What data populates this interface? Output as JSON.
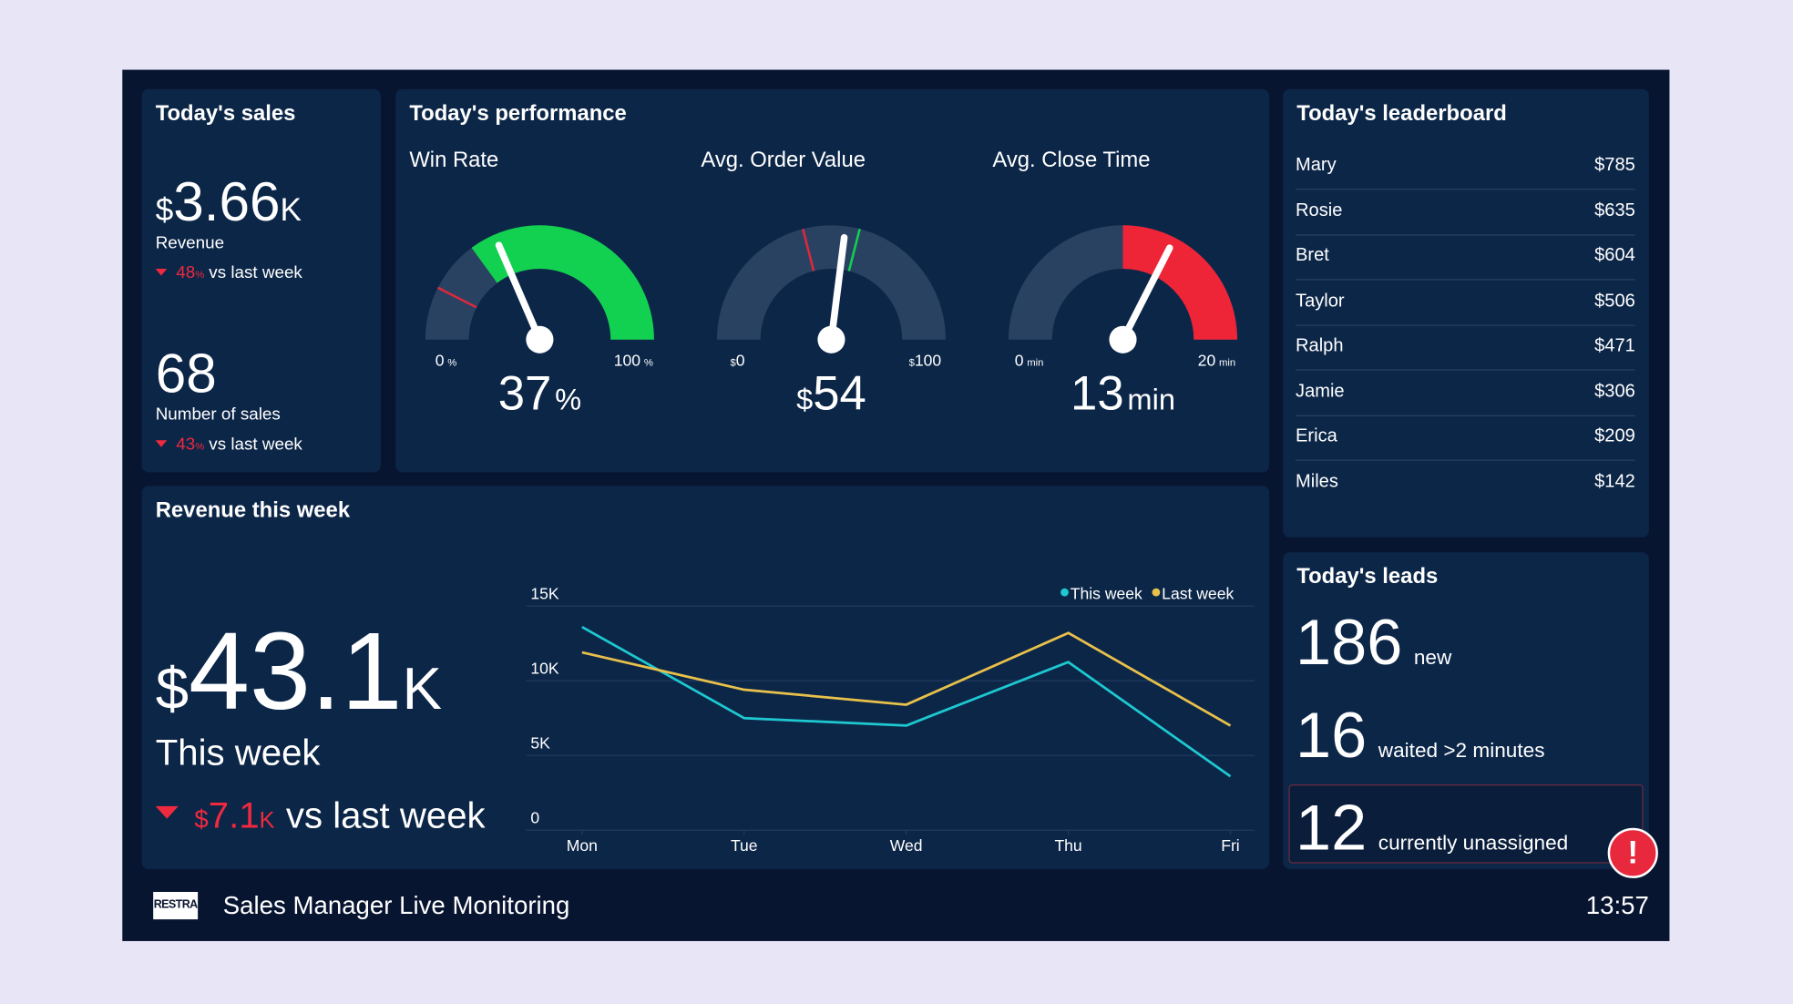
{
  "sales": {
    "title": "Today's sales",
    "revenue": {
      "currency": "$",
      "value": 3.66,
      "suffix": "K",
      "label": "Revenue",
      "change": 48,
      "change_unit": "%",
      "change_label": "vs last week"
    },
    "count": {
      "value": 68,
      "label": "Number of sales",
      "change": 43,
      "change_unit": "%",
      "change_label": "vs last week"
    }
  },
  "performance": {
    "title": "Today's performance",
    "gauges": [
      {
        "name": "Win Rate",
        "min": 0,
        "max": 100,
        "unit": "%",
        "value": 37,
        "zone": {
          "from": 30,
          "to": 100,
          "color": "#12d150"
        },
        "markers": [
          {
            "value": 15,
            "color": "#e0283c"
          },
          {
            "value": 30,
            "color": "#12d150"
          }
        ]
      },
      {
        "name": "Avg. Order Value",
        "min": 0,
        "max": 100,
        "prefix": "$",
        "value": 54,
        "markers": [
          {
            "value": 42,
            "color": "#e0283c"
          },
          {
            "value": 58,
            "color": "#12d150"
          }
        ]
      },
      {
        "name": "Avg. Close Time",
        "min": 0,
        "max": 20,
        "unit": "min",
        "value": 13,
        "zone": {
          "from": 10,
          "to": 20,
          "color": "#ee2537"
        }
      }
    ]
  },
  "leaderboard": {
    "title": "Today's leaderboard",
    "rows": [
      {
        "name": "Mary",
        "amount": "$785"
      },
      {
        "name": "Rosie",
        "amount": "$635"
      },
      {
        "name": "Bret",
        "amount": "$604"
      },
      {
        "name": "Taylor",
        "amount": "$506"
      },
      {
        "name": "Ralph",
        "amount": "$471"
      },
      {
        "name": "Jamie",
        "amount": "$306"
      },
      {
        "name": "Erica",
        "amount": "$209"
      },
      {
        "name": "Miles",
        "amount": "$142"
      }
    ]
  },
  "revenue_week": {
    "title": "Revenue this week",
    "total": {
      "currency": "$",
      "value": 43.1,
      "suffix": "K",
      "label": "This week",
      "change_currency": "$",
      "change": 7.1,
      "change_suffix": "K",
      "change_label": "vs last week"
    },
    "chart": {
      "type": "line",
      "categories": [
        "Mon",
        "Tue",
        "Wed",
        "Thu",
        "Fri"
      ],
      "series": [
        {
          "name": "This week",
          "color": "#1ec8d0",
          "values": [
            13600,
            7500,
            7000,
            11250,
            3600
          ]
        },
        {
          "name": "Last week",
          "color": "#e8c14a",
          "values": [
            11900,
            9400,
            8400,
            13200,
            7000
          ]
        }
      ],
      "ylim": [
        0,
        15000
      ],
      "yticks": [
        0,
        {
          "value": 5000,
          "label": "5K"
        },
        {
          "value": 10000,
          "label": "10K"
        },
        {
          "value": 15000,
          "label": "15K"
        }
      ],
      "grid": true
    }
  },
  "leads": {
    "title": "Today's leads",
    "items": [
      {
        "value": 186,
        "label": "new"
      },
      {
        "value": 16,
        "label": "waited >2 minutes"
      },
      {
        "value": 12,
        "label": "currently unassigned"
      }
    ],
    "alert": "!"
  },
  "footer": {
    "logo": "RESTRA",
    "title": "Sales Manager Live Monitoring",
    "time": "13:57"
  }
}
